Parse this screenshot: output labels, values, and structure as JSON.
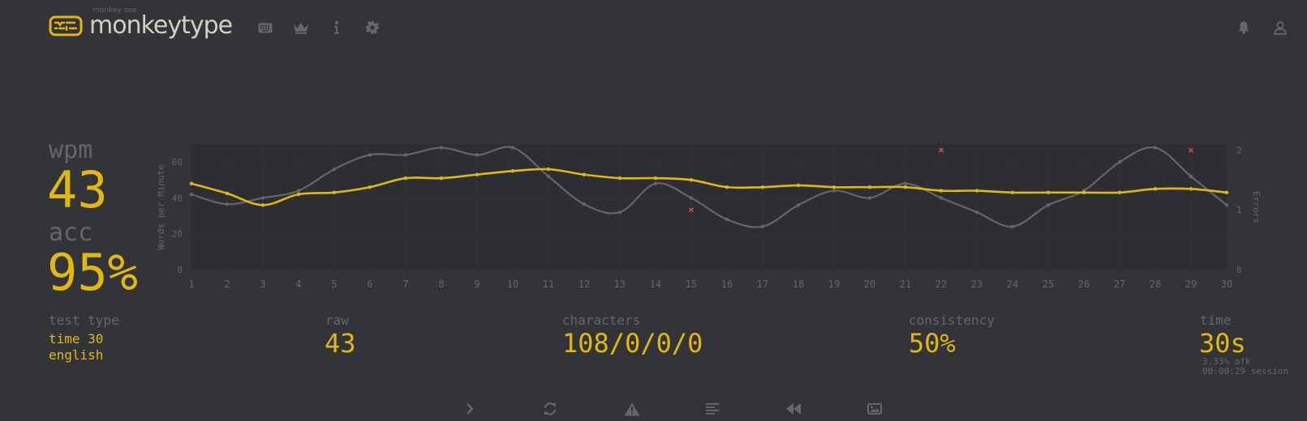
{
  "header": {
    "logo_sub": "monkey see",
    "logo_text": "monkeytype",
    "nav": [
      "keyboard-icon",
      "crown-icon",
      "info-icon",
      "gear-icon"
    ],
    "right": [
      "bell-icon",
      "user-icon"
    ]
  },
  "stats": {
    "wpm_label": "wpm",
    "wpm_value": "43",
    "acc_label": "acc",
    "acc_value": "95%"
  },
  "more": {
    "test_type_label": "test type",
    "test_type_mode": "time 30",
    "test_type_lang": "english",
    "raw_label": "raw",
    "raw_value": "43",
    "characters_label": "characters",
    "characters_value": "108/0/0/0",
    "consistency_label": "consistency",
    "consistency_value": "50%",
    "time_label": "time",
    "time_value": "30s",
    "afk": "3.33% afk",
    "session": "00:00:29 session"
  },
  "buttons": [
    "next-test",
    "restart-test",
    "report-question",
    "show-words-history",
    "replay",
    "save-screenshot"
  ],
  "colors": {
    "accent": "#e2b714",
    "raw_line": "#646669",
    "error": "#ca4754",
    "text": "#d1d0c5",
    "bg": "#323437"
  },
  "chart_data": {
    "type": "line",
    "ylabel": "Words per Minute",
    "y2label": "Errors",
    "x": [
      1,
      2,
      3,
      4,
      5,
      6,
      7,
      8,
      9,
      10,
      11,
      12,
      13,
      14,
      15,
      16,
      17,
      18,
      19,
      20,
      21,
      22,
      23,
      24,
      25,
      26,
      27,
      28,
      29,
      30
    ],
    "ylim": [
      0,
      70
    ],
    "yticks": [
      0,
      20,
      40,
      60
    ],
    "y2lim": [
      0,
      2.1
    ],
    "y2ticks": [
      0,
      1,
      2
    ],
    "series": [
      {
        "role": "wpm",
        "values": [
          48,
          42.5,
          36,
          42,
          43,
          46,
          51,
          51,
          53,
          55,
          56,
          53,
          51,
          51,
          50,
          46,
          46,
          47,
          46,
          46,
          46,
          44,
          44,
          43,
          43,
          43,
          43,
          45,
          45,
          43
        ]
      },
      {
        "role": "raw",
        "values": [
          42,
          36.5,
          40,
          44,
          56,
          64,
          64,
          68,
          64,
          68,
          52,
          36.5,
          32,
          48,
          40,
          28,
          24,
          36,
          44,
          40,
          48,
          40,
          32,
          24,
          36,
          44,
          60,
          68,
          52,
          36
        ]
      }
    ],
    "errors": [
      {
        "x": 15,
        "value": 1
      },
      {
        "x": 22,
        "value": 2
      },
      {
        "x": 29,
        "value": 2
      }
    ]
  }
}
